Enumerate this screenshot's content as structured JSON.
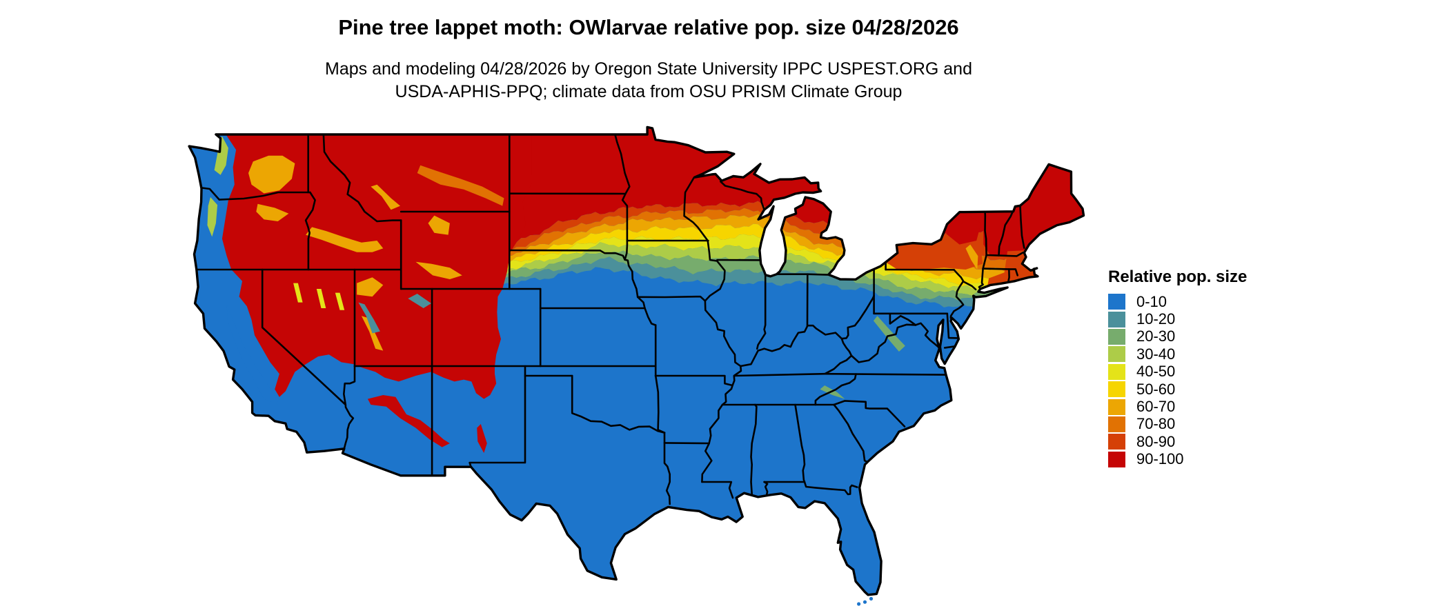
{
  "title": "Pine tree lappet moth: OWlarvae relative pop. size 04/28/2026",
  "subtitle_line1": "Maps and modeling 04/28/2026 by Oregon State University IPPC USPEST.ORG and",
  "subtitle_line2": "USDA-APHIS-PPQ; climate data from OSU PRISM Climate Group",
  "map": {
    "area": "Contiguous United States",
    "background_color": "#ffffff",
    "border_color": "#000000"
  },
  "legend": {
    "title": "Relative pop. size",
    "classes": [
      {
        "label": "0-10",
        "color": "#1d75cb"
      },
      {
        "label": "10-20",
        "color": "#4b909b"
      },
      {
        "label": "20-30",
        "color": "#77ac6d"
      },
      {
        "label": "30-40",
        "color": "#adcc48"
      },
      {
        "label": "40-50",
        "color": "#e4e319"
      },
      {
        "label": "50-60",
        "color": "#f6d500"
      },
      {
        "label": "60-70",
        "color": "#eca603"
      },
      {
        "label": "70-80",
        "color": "#e17203"
      },
      {
        "label": "80-90",
        "color": "#d54006"
      },
      {
        "label": "90-100",
        "color": "#c50505"
      }
    ]
  }
}
